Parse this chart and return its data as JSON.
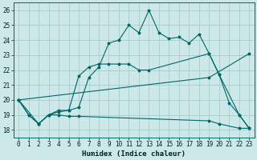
{
  "xlabel": "Humidex (Indice chaleur)",
  "bg_color": "#cce8e8",
  "grid_color": "#aacccc",
  "line_color": "#006666",
  "xlim": [
    -0.5,
    23.5
  ],
  "ylim": [
    17.5,
    26.5
  ],
  "xticks": [
    0,
    1,
    2,
    3,
    4,
    5,
    6,
    7,
    8,
    9,
    10,
    11,
    12,
    13,
    14,
    15,
    16,
    17,
    18,
    19,
    20,
    21,
    22,
    23
  ],
  "yticks": [
    18,
    19,
    20,
    21,
    22,
    23,
    24,
    25,
    26
  ],
  "line1_x": [
    0,
    1,
    2,
    3,
    4,
    5,
    6,
    7,
    8,
    9,
    10,
    11,
    12,
    13,
    14,
    15,
    16,
    17,
    18,
    19,
    20,
    21,
    22,
    23
  ],
  "line1_y": [
    20.0,
    19.0,
    18.4,
    19.0,
    19.2,
    19.3,
    19.5,
    21.5,
    22.2,
    23.8,
    24.0,
    25.0,
    24.5,
    26.0,
    24.5,
    24.1,
    24.2,
    23.8,
    24.4,
    23.1,
    21.7,
    19.8,
    19.0,
    18.1
  ],
  "line2_x": [
    0,
    1,
    2,
    3,
    4,
    5,
    6,
    7,
    8,
    9,
    10,
    11,
    12,
    13,
    19,
    20,
    22,
    23
  ],
  "line2_y": [
    20.0,
    19.0,
    18.4,
    19.0,
    19.3,
    19.3,
    21.6,
    22.2,
    22.4,
    22.4,
    22.4,
    22.4,
    22.0,
    22.0,
    23.1,
    21.7,
    19.0,
    18.1
  ],
  "line3_x": [
    0,
    19,
    23
  ],
  "line3_y": [
    20.0,
    21.5,
    23.1
  ],
  "line4_x": [
    0,
    2,
    3,
    4,
    5,
    6,
    19,
    20,
    22,
    23
  ],
  "line4_y": [
    20.0,
    18.4,
    19.0,
    19.0,
    18.9,
    18.9,
    18.6,
    18.4,
    18.1,
    18.1
  ]
}
